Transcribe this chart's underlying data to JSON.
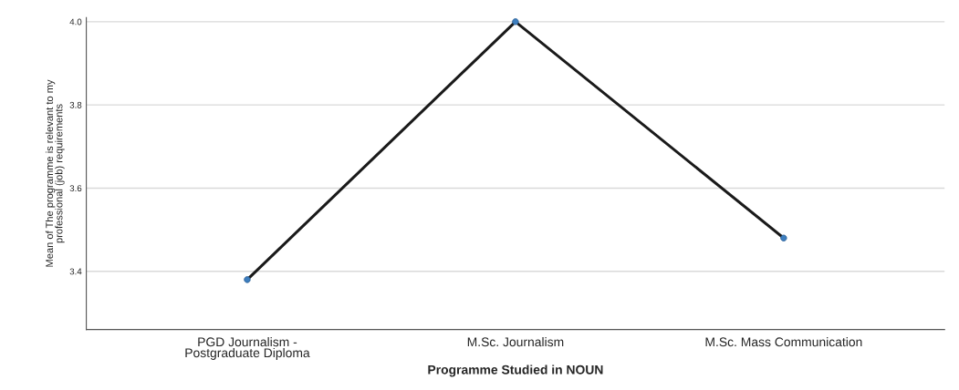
{
  "chart_data": {
    "type": "line",
    "xlabel": "Programme Studied in NOUN",
    "ylabel": "Mean of The programme is relevant to my\nprofessional (job) requirements",
    "categories": [
      "PGD Journalism -\nPostgraduate Diploma",
      "M.Sc. Journalism",
      "M.Sc. Mass Communication"
    ],
    "series": [
      {
        "color": "#1a1a1a",
        "colors": [
          "#3d7ebf",
          "#3d7ebf",
          "#3d7ebf"
        ],
        "values": [
          3.38,
          4.0,
          3.48
        ]
      }
    ],
    "ylim": [
      3.26,
      4.01
    ],
    "yticks": [
      {
        "value": 3.4,
        "label": "3.4"
      },
      {
        "value": 3.6,
        "label": "3.6"
      },
      {
        "value": 3.8,
        "label": "3.8"
      },
      {
        "value": 4.0,
        "label": "4.0"
      }
    ],
    "grid": "y",
    "marker": "circle",
    "line_style": "solid",
    "legend": false
  }
}
